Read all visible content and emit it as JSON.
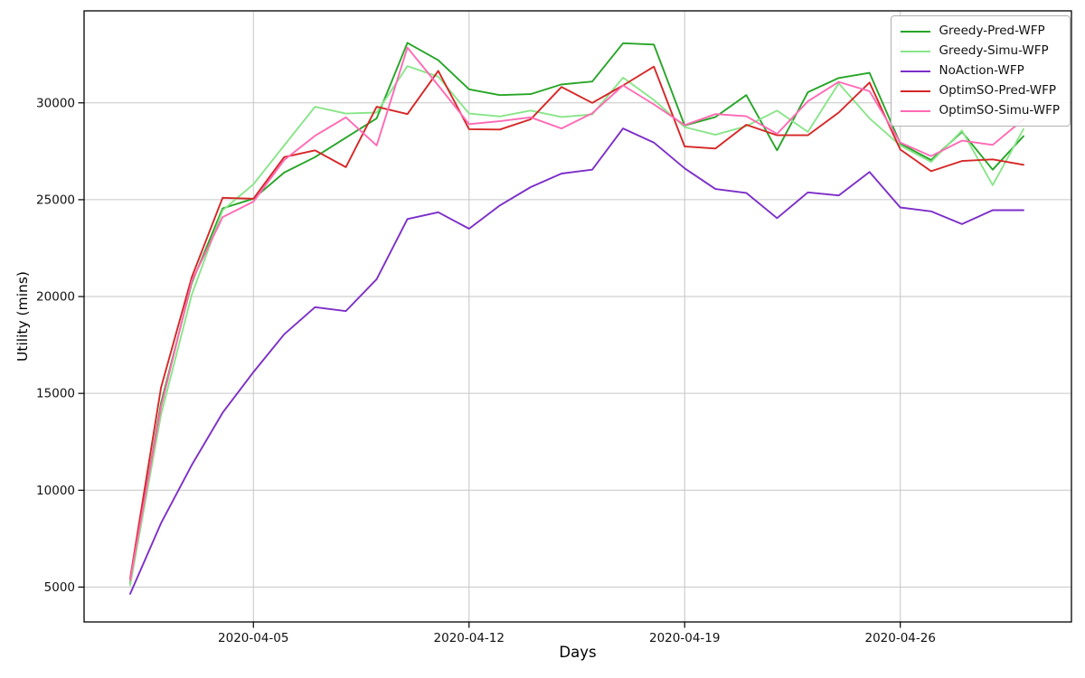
{
  "chart_data": {
    "type": "line",
    "title": "",
    "xlabel": "Days",
    "ylabel": "Utility (mins)",
    "grid": true,
    "legend_position": "upper right",
    "ylim": [
      3200,
      34750
    ],
    "y_ticks": [
      5000,
      10000,
      15000,
      20000,
      25000,
      30000
    ],
    "x_tick_labels": [
      "2020-04-05",
      "2020-04-12",
      "2020-04-19",
      "2020-04-26"
    ],
    "categories": [
      "2020-04-01",
      "2020-04-02",
      "2020-04-03",
      "2020-04-04",
      "2020-04-05",
      "2020-04-06",
      "2020-04-07",
      "2020-04-08",
      "2020-04-09",
      "2020-04-10",
      "2020-04-11",
      "2020-04-12",
      "2020-04-13",
      "2020-04-14",
      "2020-04-15",
      "2020-04-16",
      "2020-04-17",
      "2020-04-18",
      "2020-04-19",
      "2020-04-20",
      "2020-04-21",
      "2020-04-22",
      "2020-04-23",
      "2020-04-24",
      "2020-04-25",
      "2020-04-26",
      "2020-04-27",
      "2020-04-28",
      "2020-04-29",
      "2020-04-30"
    ],
    "series": [
      {
        "name": "Greedy-Pred-WFP",
        "color": "#27A527",
        "values": [
          5200,
          14500,
          20700,
          24550,
          25050,
          26400,
          27200,
          28200,
          29200,
          33100,
          32200,
          30700,
          30400,
          30450,
          30950,
          31100,
          33080,
          33010,
          28830,
          29270,
          30400,
          27550,
          30550,
          31280,
          31550,
          27900,
          27050,
          28500,
          26550,
          28280
        ]
      },
      {
        "name": "Greedy-Simu-WFP",
        "color": "#89E589",
        "values": [
          5100,
          13900,
          20100,
          24450,
          25800,
          27800,
          29800,
          29450,
          29500,
          31900,
          31350,
          29450,
          29300,
          29600,
          29270,
          29400,
          31300,
          30150,
          28750,
          28350,
          28800,
          29600,
          28500,
          31000,
          29200,
          27800,
          26950,
          28570,
          25750,
          28650
        ]
      },
      {
        "name": "NoAction-WFP",
        "color": "#7D2EC8",
        "values": [
          4650,
          8300,
          11300,
          14000,
          16100,
          18050,
          19450,
          19250,
          20900,
          24000,
          24350,
          23500,
          24700,
          25650,
          26350,
          26550,
          28680,
          27950,
          26620,
          25550,
          25350,
          24050,
          25380,
          25220,
          26430,
          24600,
          24400,
          23740,
          24460,
          24460
        ]
      },
      {
        "name": "OptimSO-Pred-WFP",
        "color": "#D62626",
        "values": [
          5450,
          15300,
          21000,
          25100,
          25050,
          27200,
          27550,
          26680,
          29800,
          29420,
          31650,
          28640,
          28620,
          29150,
          30820,
          30000,
          30900,
          31870,
          27750,
          27640,
          28870,
          28330,
          28330,
          29500,
          31050,
          27590,
          26470,
          27000,
          27080,
          26800
        ]
      },
      {
        "name": "OptimSO-Simu-WFP",
        "color": "#FF69B4",
        "values": [
          5350,
          14300,
          20800,
          24100,
          24900,
          27050,
          28300,
          29250,
          27800,
          32850,
          30900,
          28900,
          29050,
          29250,
          28680,
          29460,
          30900,
          29920,
          28850,
          29420,
          29310,
          28400,
          30080,
          31080,
          30600,
          27950,
          27250,
          28050,
          27830,
          29150
        ]
      }
    ],
    "style": {
      "grid_color": "#C6C6C6",
      "spine_color": "#000000",
      "tick_label_color": "#111111",
      "line_width": 1.9
    }
  }
}
